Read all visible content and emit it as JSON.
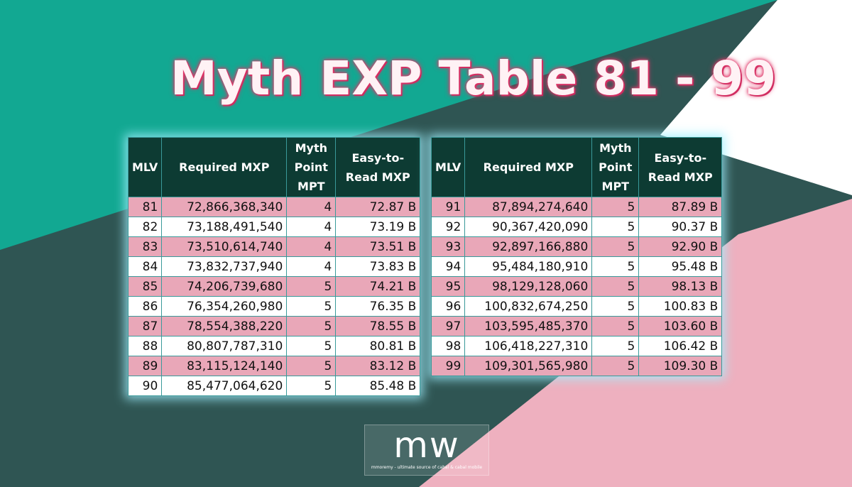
{
  "title": "Myth EXP Table 81 - 99",
  "tables": [
    {
      "headers": [
        "MLV",
        "Required MXP",
        "Myth Point MPT",
        "Easy-to-Read MXP"
      ],
      "rows": [
        [
          "81",
          "72,866,368,340",
          "4",
          "72.87 B"
        ],
        [
          "82",
          "73,188,491,540",
          "4",
          "73.19 B"
        ],
        [
          "83",
          "73,510,614,740",
          "4",
          "73.51 B"
        ],
        [
          "84",
          "73,832,737,940",
          "4",
          "73.83 B"
        ],
        [
          "85",
          "74,206,739,680",
          "5",
          "74.21 B"
        ],
        [
          "86",
          "76,354,260,980",
          "5",
          "76.35 B"
        ],
        [
          "87",
          "78,554,388,220",
          "5",
          "78.55 B"
        ],
        [
          "88",
          "80,807,787,310",
          "5",
          "80.81 B"
        ],
        [
          "89",
          "83,115,124,140",
          "5",
          "83.12 B"
        ],
        [
          "90",
          "85,477,064,620",
          "5",
          "85.48 B"
        ]
      ]
    },
    {
      "headers": [
        "MLV",
        "Required MXP",
        "Myth Point MPT",
        "Easy-to-Read MXP"
      ],
      "rows": [
        [
          "91",
          "87,894,274,640",
          "5",
          "87.89 B"
        ],
        [
          "92",
          "90,367,420,090",
          "5",
          "90.37 B"
        ],
        [
          "93",
          "92,897,166,880",
          "5",
          "92.90 B"
        ],
        [
          "94",
          "95,484,180,910",
          "5",
          "95.48 B"
        ],
        [
          "95",
          "98,129,128,060",
          "5",
          "98.13 B"
        ],
        [
          "96",
          "100,832,674,250",
          "5",
          "100.83 B"
        ],
        [
          "97",
          "103,595,485,370",
          "5",
          "103.60 B"
        ],
        [
          "98",
          "106,418,227,310",
          "5",
          "106.42 B"
        ],
        [
          "99",
          "109,301,565,980",
          "5",
          "109.30 B"
        ]
      ]
    }
  ],
  "logo": {
    "mark": "mw",
    "tagline": "mmoremy - ultimate source of cabal & cabal mobile"
  }
}
